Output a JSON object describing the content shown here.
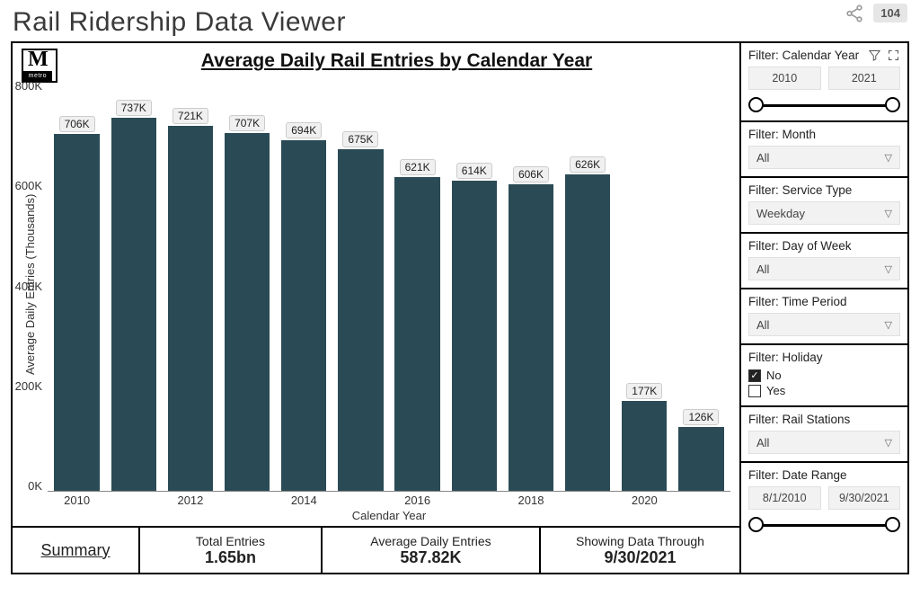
{
  "page_title": "Rail Ridership Data Viewer",
  "view_count": "104",
  "logo": {
    "letter": "M",
    "word": "metro"
  },
  "chart": {
    "type": "bar",
    "title": "Average Daily Rail Entries by Calendar Year",
    "y_axis_label": "Average Daily Entries (Thousands)",
    "x_axis_label": "Calendar Year",
    "ylim": [
      0,
      800
    ],
    "ytick_step": 200,
    "yticks": [
      "800K",
      "600K",
      "400K",
      "200K",
      "0K"
    ],
    "bar_color": "#2a4b55",
    "background_color": "#ffffff",
    "data": [
      {
        "year": "2010",
        "value": 706,
        "label": "706K"
      },
      {
        "year": "2011",
        "value": 737,
        "label": "737K"
      },
      {
        "year": "2012",
        "value": 721,
        "label": "721K"
      },
      {
        "year": "2013",
        "value": 707,
        "label": "707K"
      },
      {
        "year": "2014",
        "value": 694,
        "label": "694K"
      },
      {
        "year": "2015",
        "value": 675,
        "label": "675K"
      },
      {
        "year": "2016",
        "value": 621,
        "label": "621K"
      },
      {
        "year": "2017",
        "value": 614,
        "label": "614K"
      },
      {
        "year": "2018",
        "value": 606,
        "label": "606K"
      },
      {
        "year": "2019",
        "value": 626,
        "label": "626K"
      },
      {
        "year": "2020",
        "value": 177,
        "label": "177K"
      },
      {
        "year": "2021",
        "value": 126,
        "label": "126K"
      }
    ],
    "x_tick_every": 2
  },
  "summary": {
    "tab": "Summary",
    "cells": [
      {
        "label": "Total Entries",
        "value": "1.65bn"
      },
      {
        "label": "Average Daily Entries",
        "value": "587.82K"
      },
      {
        "label": "Showing Data Through",
        "value": "9/30/2021"
      }
    ]
  },
  "filters": {
    "calendar_year": {
      "title": "Filter: Calendar Year",
      "from": "2010",
      "to": "2021"
    },
    "month": {
      "title": "Filter: Month",
      "value": "All"
    },
    "service_type": {
      "title": "Filter: Service Type",
      "value": "Weekday"
    },
    "day_of_week": {
      "title": "Filter: Day of Week",
      "value": "All"
    },
    "time_period": {
      "title": "Filter: Time Period",
      "value": "All"
    },
    "holiday": {
      "title": "Filter: Holiday",
      "options": [
        {
          "label": "No",
          "checked": true
        },
        {
          "label": "Yes",
          "checked": false
        }
      ]
    },
    "rail_stations": {
      "title": "Filter: Rail Stations",
      "value": "All"
    },
    "date_range": {
      "title": "Filter: Date Range",
      "from": "8/1/2010",
      "to": "9/30/2021"
    }
  }
}
